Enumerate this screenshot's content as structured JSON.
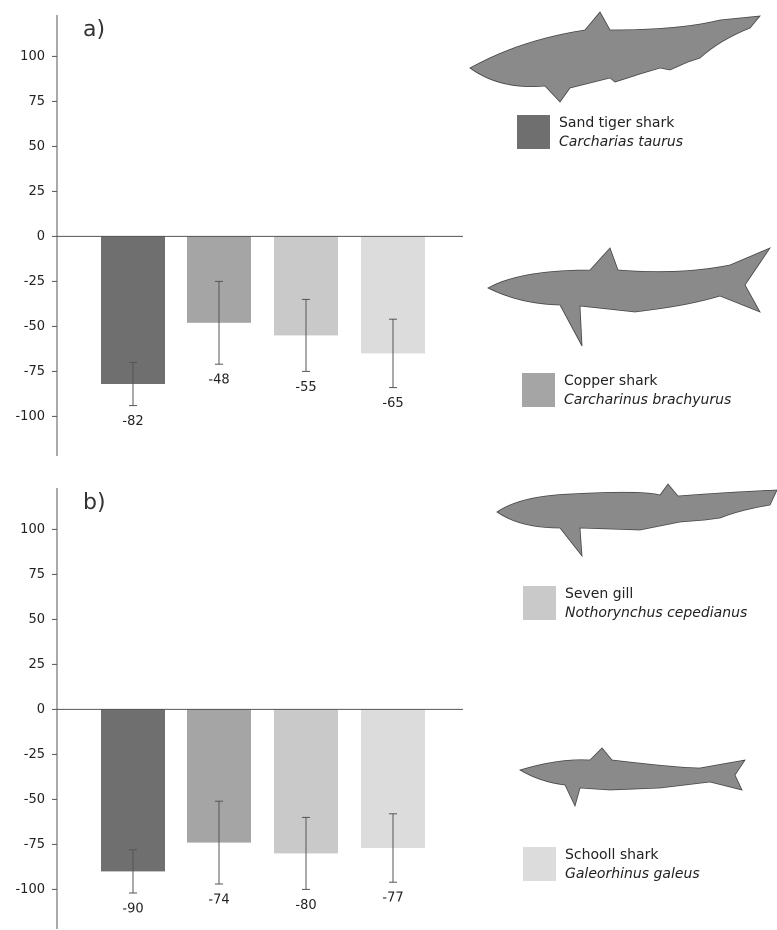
{
  "chart_data": [
    {
      "type": "bar",
      "title": "a)",
      "values": [
        -82,
        -48,
        -55,
        -65
      ],
      "errors": [
        12,
        23,
        20,
        19
      ],
      "ylim": [
        -122,
        123
      ],
      "yticks": [
        -100,
        -75,
        -50,
        -25,
        0,
        25,
        50,
        75,
        100
      ]
    },
    {
      "type": "bar",
      "title": "b)",
      "values": [
        -90,
        -74,
        -80,
        -77
      ],
      "errors": [
        12,
        23,
        20,
        19
      ],
      "ylim": [
        -122,
        123
      ],
      "yticks": [
        -100,
        -75,
        -50,
        -25,
        0,
        25,
        50,
        75,
        100
      ]
    }
  ],
  "legend": [
    {
      "name": "Sand tiger shark",
      "species": "Carcharias taurus",
      "color": "#6f6f6f"
    },
    {
      "name": "Copper shark",
      "species": "Carcharinus brachyurus",
      "color": "#a5a5a5"
    },
    {
      "name": "Seven gill",
      "species": "Nothorynchus cepedianus",
      "color": "#c9c9c9"
    },
    {
      "name": "Schooll shark",
      "species": "Galeorhinus galeus",
      "color": "#dcdcdc"
    }
  ]
}
